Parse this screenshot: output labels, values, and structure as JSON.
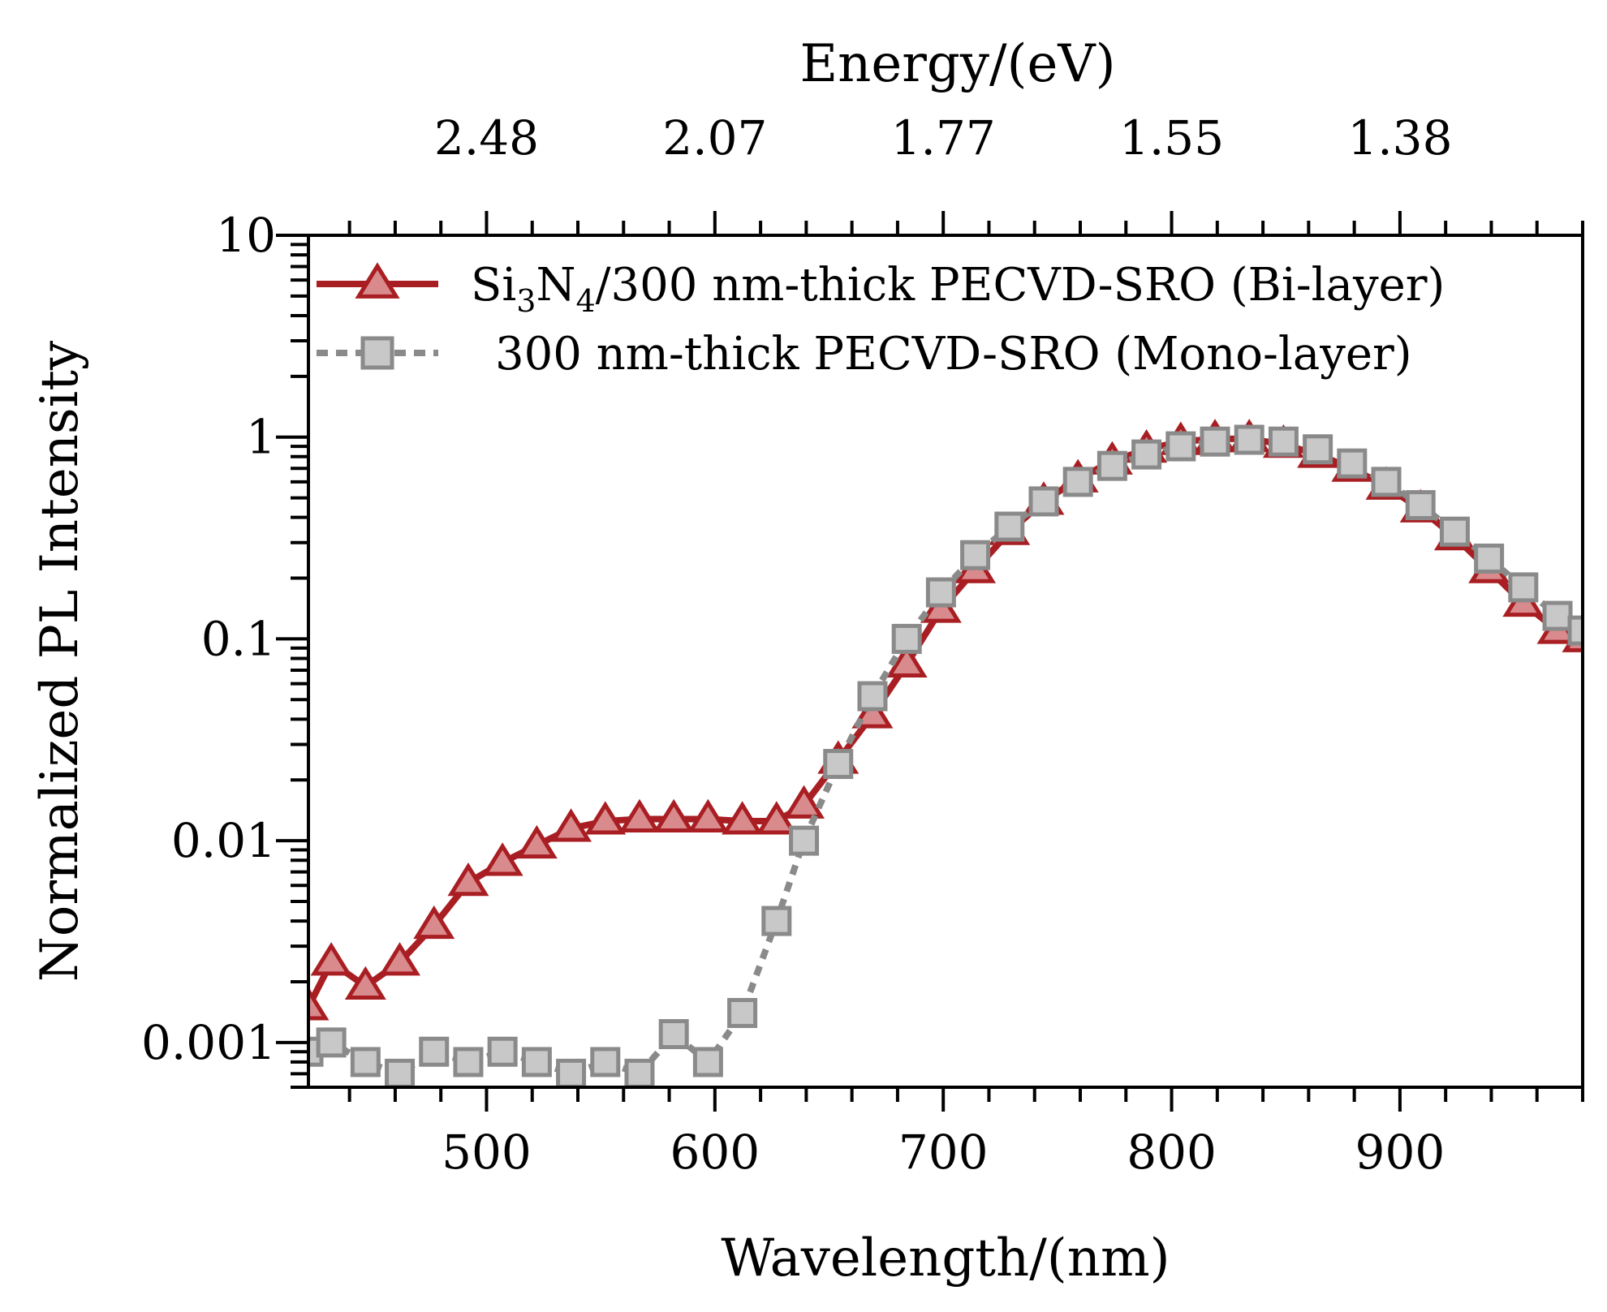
{
  "chart_data": {
    "type": "line",
    "title": "",
    "xlabel": "Wavelength/(nm)",
    "ylabel": "Normalized PL Intensity",
    "x2label": "Energy/(eV)",
    "xlim": [
      422,
      980
    ],
    "ylim_log": [
      0.0006,
      10
    ],
    "y_scale": "log",
    "x_ticks": [
      500,
      600,
      700,
      800,
      900
    ],
    "y_ticks": [
      {
        "value": 10,
        "label": "10"
      },
      {
        "value": 1,
        "label": "1"
      },
      {
        "value": 0.1,
        "label": "0.1"
      },
      {
        "value": 0.01,
        "label": "0.01"
      },
      {
        "value": 0.001,
        "label": "0.001"
      }
    ],
    "top_ticks": [
      {
        "wavelength": 500,
        "label": "2.48"
      },
      {
        "wavelength": 600,
        "label": "2.07"
      },
      {
        "wavelength": 700,
        "label": "1.77"
      },
      {
        "wavelength": 800,
        "label": "1.55"
      },
      {
        "wavelength": 900,
        "label": "1.38"
      }
    ],
    "legend_position": "top-left",
    "series": [
      {
        "name": "Si3N4/300 nm-thick PECVD-SRO (Bi-layer)",
        "legend_parts": [
          "Si",
          "3",
          "N",
          "4",
          "/300 nm-thick PECVD-SRO (Bi-layer)"
        ],
        "color": "#a81e22",
        "fill": "#d98a8c",
        "marker": "triangle",
        "dash": "solid",
        "x": [
          422,
          432,
          447,
          462,
          477,
          492,
          507,
          522,
          537,
          552,
          567,
          582,
          597,
          612,
          627,
          639,
          654,
          669,
          684,
          699,
          714,
          729,
          744,
          759,
          774,
          789,
          804,
          819,
          834,
          849,
          864,
          879,
          894,
          909,
          924,
          939,
          954,
          969,
          980
        ],
        "y": [
          0.0015,
          0.0025,
          0.0019,
          0.0025,
          0.0038,
          0.0062,
          0.0078,
          0.0095,
          0.0115,
          0.0125,
          0.0128,
          0.0128,
          0.0128,
          0.0125,
          0.0125,
          0.015,
          0.025,
          0.042,
          0.075,
          0.14,
          0.22,
          0.34,
          0.48,
          0.62,
          0.76,
          0.87,
          0.95,
          0.98,
          0.98,
          0.92,
          0.82,
          0.7,
          0.57,
          0.44,
          0.32,
          0.22,
          0.15,
          0.11,
          0.1
        ]
      },
      {
        "name": "300 nm-thick PECVD-SRO (Mono-layer)",
        "legend_parts": [
          "300 nm-thick PECVD-SRO (Mono-layer)"
        ],
        "color": "#8a8a8a",
        "fill": "#c8c8c8",
        "marker": "square",
        "dash": "dotted",
        "x": [
          422,
          432,
          447,
          462,
          477,
          492,
          507,
          522,
          537,
          552,
          567,
          582,
          597,
          612,
          627,
          639,
          654,
          669,
          684,
          699,
          714,
          729,
          744,
          759,
          774,
          789,
          804,
          819,
          834,
          849,
          864,
          879,
          894,
          909,
          924,
          939,
          954,
          969,
          980
        ],
        "y": [
          0.0009,
          0.001,
          0.0008,
          0.0007,
          0.0009,
          0.0008,
          0.0009,
          0.0008,
          0.0007,
          0.0008,
          0.0007,
          0.0011,
          0.0008,
          0.0014,
          0.004,
          0.01,
          0.024,
          0.052,
          0.1,
          0.17,
          0.26,
          0.36,
          0.48,
          0.6,
          0.72,
          0.82,
          0.9,
          0.95,
          0.97,
          0.95,
          0.87,
          0.74,
          0.6,
          0.46,
          0.34,
          0.25,
          0.18,
          0.13,
          0.11
        ]
      }
    ]
  }
}
